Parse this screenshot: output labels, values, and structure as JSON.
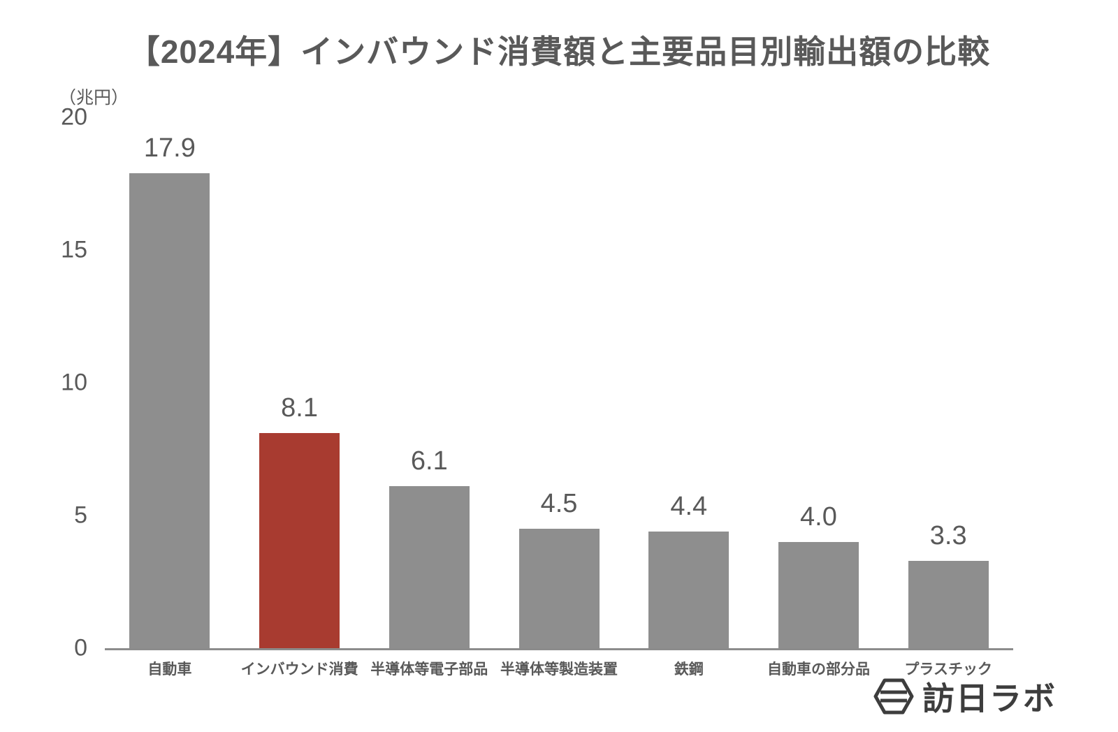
{
  "title": "【2024年】インバウンド消費額と主要品目別輸出額の比較",
  "unit_label": "（兆円）",
  "logo": {
    "text": "訪日ラボ",
    "icon": "hexagon-logo-icon"
  },
  "chart_data": {
    "type": "bar",
    "title": "【2024年】インバウンド消費額と主要品目別輸出額の比較",
    "xlabel": "",
    "ylabel": "（兆円）",
    "categories": [
      "自動車",
      "インバウンド消費",
      "半導体等電子部品",
      "半導体等製造装置",
      "鉄鋼",
      "自動車の部分品",
      "プラスチック"
    ],
    "values": [
      17.9,
      8.1,
      6.1,
      4.5,
      4.4,
      4.0,
      3.3
    ],
    "value_labels": [
      "17.9",
      "8.1",
      "6.1",
      "4.5",
      "4.4",
      "4.0",
      "3.3"
    ],
    "highlight_index": 1,
    "bar_color": "#8e8e8e",
    "highlight_color": "#a83b30",
    "ylim": [
      0,
      20
    ],
    "yticks": [
      0,
      5,
      10,
      15,
      20
    ],
    "grid": false,
    "legend": "none"
  }
}
